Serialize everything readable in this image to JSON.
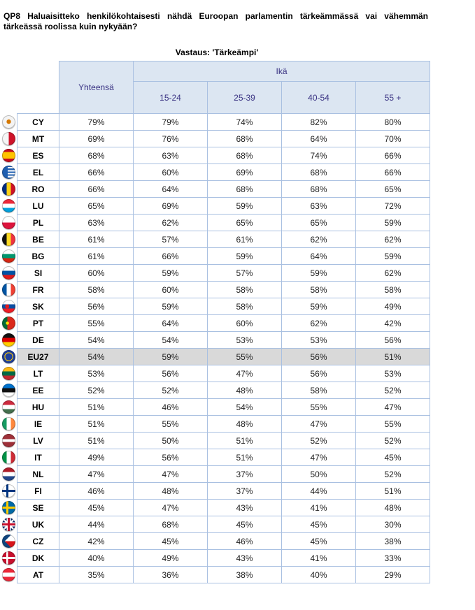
{
  "question": "QP8 Haluaisitteko henkilökohtaisesti nähdä Euroopan parlamentin tärkeämmässä vai vähemmän tärkeässä roolissa kuin nykyään?",
  "subtitle": "Vastaus: 'Tärkeämpi'",
  "header": {
    "total": "Yhteensä",
    "age_group": "Ikä",
    "ages": [
      "15-24",
      "25-39",
      "40-54",
      "55 +"
    ]
  },
  "rows": [
    {
      "code": "CY",
      "total": "79%",
      "a": [
        "79%",
        "74%",
        "82%",
        "80%"
      ],
      "flag": "cyprus"
    },
    {
      "code": "MT",
      "total": "69%",
      "a": [
        "76%",
        "68%",
        "64%",
        "70%"
      ],
      "flag": "malta"
    },
    {
      "code": "ES",
      "total": "68%",
      "a": [
        "63%",
        "68%",
        "74%",
        "66%"
      ],
      "flag": "spain"
    },
    {
      "code": "EL",
      "total": "66%",
      "a": [
        "60%",
        "69%",
        "68%",
        "66%"
      ],
      "flag": "greece"
    },
    {
      "code": "RO",
      "total": "66%",
      "a": [
        "64%",
        "68%",
        "68%",
        "65%"
      ],
      "flag": "romania"
    },
    {
      "code": "LU",
      "total": "65%",
      "a": [
        "69%",
        "59%",
        "63%",
        "72%"
      ],
      "flag": "luxembourg"
    },
    {
      "code": "PL",
      "total": "63%",
      "a": [
        "62%",
        "65%",
        "65%",
        "59%"
      ],
      "flag": "poland"
    },
    {
      "code": "BE",
      "total": "61%",
      "a": [
        "57%",
        "61%",
        "62%",
        "62%"
      ],
      "flag": "belgium"
    },
    {
      "code": "BG",
      "total": "61%",
      "a": [
        "66%",
        "59%",
        "64%",
        "59%"
      ],
      "flag": "bulgaria"
    },
    {
      "code": "SI",
      "total": "60%",
      "a": [
        "59%",
        "57%",
        "59%",
        "62%"
      ],
      "flag": "slovenia"
    },
    {
      "code": "FR",
      "total": "58%",
      "a": [
        "60%",
        "58%",
        "58%",
        "58%"
      ],
      "flag": "france"
    },
    {
      "code": "SK",
      "total": "56%",
      "a": [
        "59%",
        "58%",
        "59%",
        "49%"
      ],
      "flag": "slovakia"
    },
    {
      "code": "PT",
      "total": "55%",
      "a": [
        "64%",
        "60%",
        "62%",
        "42%"
      ],
      "flag": "portugal"
    },
    {
      "code": "DE",
      "total": "54%",
      "a": [
        "54%",
        "53%",
        "53%",
        "56%"
      ],
      "flag": "germany"
    },
    {
      "code": "EU27",
      "total": "54%",
      "a": [
        "59%",
        "55%",
        "56%",
        "51%"
      ],
      "flag": "eu",
      "highlight": true
    },
    {
      "code": "LT",
      "total": "53%",
      "a": [
        "56%",
        "47%",
        "56%",
        "53%"
      ],
      "flag": "lithuania"
    },
    {
      "code": "EE",
      "total": "52%",
      "a": [
        "52%",
        "48%",
        "58%",
        "52%"
      ],
      "flag": "estonia"
    },
    {
      "code": "HU",
      "total": "51%",
      "a": [
        "46%",
        "54%",
        "55%",
        "47%"
      ],
      "flag": "hungary"
    },
    {
      "code": "IE",
      "total": "51%",
      "a": [
        "55%",
        "48%",
        "47%",
        "55%"
      ],
      "flag": "ireland"
    },
    {
      "code": "LV",
      "total": "51%",
      "a": [
        "50%",
        "51%",
        "52%",
        "52%"
      ],
      "flag": "latvia"
    },
    {
      "code": "IT",
      "total": "49%",
      "a": [
        "56%",
        "51%",
        "47%",
        "45%"
      ],
      "flag": "italy"
    },
    {
      "code": "NL",
      "total": "47%",
      "a": [
        "47%",
        "37%",
        "50%",
        "52%"
      ],
      "flag": "netherlands"
    },
    {
      "code": "FI",
      "total": "46%",
      "a": [
        "48%",
        "37%",
        "44%",
        "51%"
      ],
      "flag": "finland"
    },
    {
      "code": "SE",
      "total": "45%",
      "a": [
        "47%",
        "43%",
        "41%",
        "48%"
      ],
      "flag": "sweden"
    },
    {
      "code": "UK",
      "total": "44%",
      "a": [
        "68%",
        "45%",
        "45%",
        "30%"
      ],
      "flag": "uk"
    },
    {
      "code": "CZ",
      "total": "42%",
      "a": [
        "45%",
        "46%",
        "45%",
        "38%"
      ],
      "flag": "czech"
    },
    {
      "code": "DK",
      "total": "40%",
      "a": [
        "49%",
        "43%",
        "41%",
        "33%"
      ],
      "flag": "denmark"
    },
    {
      "code": "AT",
      "total": "35%",
      "a": [
        "36%",
        "38%",
        "40%",
        "29%"
      ],
      "flag": "austria"
    }
  ]
}
